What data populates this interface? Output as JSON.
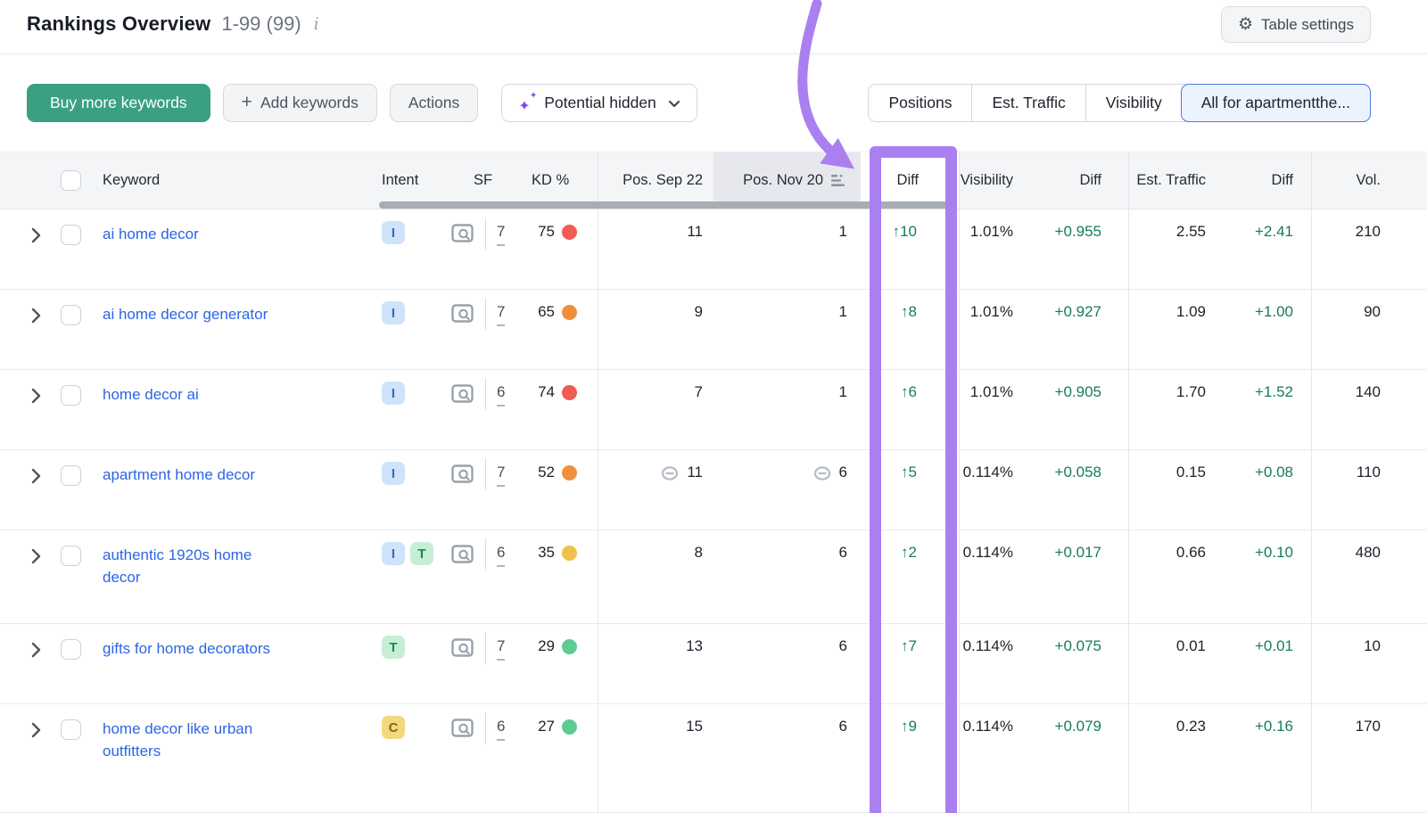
{
  "header": {
    "title": "Rankings Overview",
    "range": "1-99 (99)",
    "table_settings_label": "Table settings"
  },
  "icons": {
    "gear": "⚙",
    "info": "i",
    "plus": "+",
    "sparkle_large": "✦",
    "sparkle_small": "✦"
  },
  "toolbar": {
    "buy_label": "Buy more keywords",
    "add_label": "Add keywords",
    "actions_label": "Actions",
    "potential_label": "Potential hidden",
    "segments": [
      {
        "label": "Positions",
        "selected": false
      },
      {
        "label": "Est. Traffic",
        "selected": false
      },
      {
        "label": "Visibility",
        "selected": false
      },
      {
        "label": "All for apartmentthe...",
        "selected": true
      }
    ]
  },
  "table": {
    "columns": [
      "Keyword",
      "Intent",
      "SF",
      "KD %",
      "Pos. Sep 22",
      "Pos. Nov 20",
      "Diff",
      "Visibility",
      "Diff",
      "Est. Traffic",
      "Diff",
      "Vol."
    ],
    "sorted_column": "Pos. Nov 20",
    "rows": [
      {
        "keyword": "ai home decor",
        "intents": [
          "I"
        ],
        "sf": "7",
        "kd": "75",
        "kd_level": "red",
        "pos_sep": "11",
        "pos_sep_link": false,
        "pos_nov": "1",
        "pos_nov_link": false,
        "diff": "↑10",
        "visibility": "1.01%",
        "vis_diff": "+0.955",
        "traffic": "2.55",
        "traffic_diff": "+2.41",
        "vol": "210"
      },
      {
        "keyword": "ai home decor generator",
        "intents": [
          "I"
        ],
        "sf": "7",
        "kd": "65",
        "kd_level": "orange",
        "pos_sep": "9",
        "pos_sep_link": false,
        "pos_nov": "1",
        "pos_nov_link": false,
        "diff": "↑8",
        "visibility": "1.01%",
        "vis_diff": "+0.927",
        "traffic": "1.09",
        "traffic_diff": "+1.00",
        "vol": "90"
      },
      {
        "keyword": "home decor ai",
        "intents": [
          "I"
        ],
        "sf": "6",
        "kd": "74",
        "kd_level": "red",
        "pos_sep": "7",
        "pos_sep_link": false,
        "pos_nov": "1",
        "pos_nov_link": false,
        "diff": "↑6",
        "visibility": "1.01%",
        "vis_diff": "+0.905",
        "traffic": "1.70",
        "traffic_diff": "+1.52",
        "vol": "140"
      },
      {
        "keyword": "apartment home decor",
        "intents": [
          "I"
        ],
        "sf": "7",
        "kd": "52",
        "kd_level": "orange",
        "pos_sep": "11",
        "pos_sep_link": true,
        "pos_nov": "6",
        "pos_nov_link": true,
        "diff": "↑5",
        "visibility": "0.114%",
        "vis_diff": "+0.058",
        "traffic": "0.15",
        "traffic_diff": "+0.08",
        "vol": "110"
      },
      {
        "keyword": "authentic 1920s home\ndecor",
        "intents": [
          "I",
          "T"
        ],
        "sf": "6",
        "kd": "35",
        "kd_level": "yellow",
        "pos_sep": "8",
        "pos_sep_link": false,
        "pos_nov": "6",
        "pos_nov_link": false,
        "diff": "↑2",
        "visibility": "0.114%",
        "vis_diff": "+0.017",
        "traffic": "0.66",
        "traffic_diff": "+0.10",
        "vol": "480"
      },
      {
        "keyword": "gifts for home decorators",
        "intents": [
          "T"
        ],
        "sf": "7",
        "kd": "29",
        "kd_level": "green",
        "pos_sep": "13",
        "pos_sep_link": false,
        "pos_nov": "6",
        "pos_nov_link": false,
        "diff": "↑7",
        "visibility": "0.114%",
        "vis_diff": "+0.075",
        "traffic": "0.01",
        "traffic_diff": "+0.01",
        "vol": "10"
      },
      {
        "keyword": "home decor like urban\noutfitters",
        "intents": [
          "C"
        ],
        "sf": "6",
        "kd": "27",
        "kd_level": "green",
        "pos_sep": "15",
        "pos_sep_link": false,
        "pos_nov": "6",
        "pos_nov_link": false,
        "diff": "↑9",
        "visibility": "0.114%",
        "vis_diff": "+0.079",
        "traffic": "0.23",
        "traffic_diff": "+0.16",
        "vol": "170"
      }
    ]
  },
  "colors": {
    "green_button": "#3aa081",
    "link_blue": "#2b66e3",
    "positive_green": "#177c55",
    "purple": "#aa80f0",
    "kd_red": "#f05c52",
    "kd_orange": "#ef8e3d",
    "kd_yellow": "#efc14b",
    "kd_green": "#5ecb92",
    "intent_i_bg": "#cfe3fa",
    "intent_i_fg": "#2f6ac9",
    "intent_t_bg": "#c6efd6",
    "intent_t_fg": "#158a5c",
    "intent_c_bg": "#f2d87e",
    "intent_c_fg": "#8f6312",
    "seg_selected_border": "#4a7be0",
    "seg_selected_bg": "#edf3fe",
    "header_bg": "#f4f5f7",
    "sorted_col_bg": "#e7e8ed"
  }
}
